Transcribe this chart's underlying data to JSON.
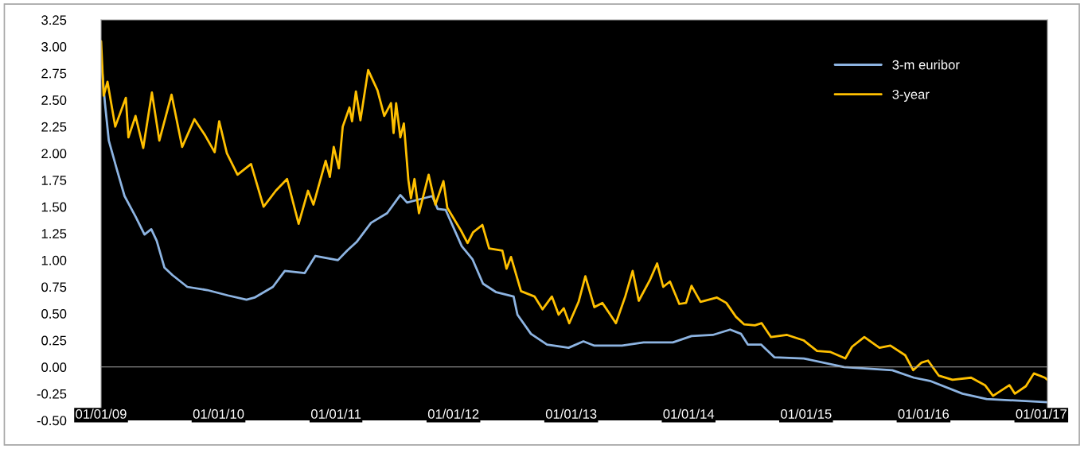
{
  "chart_data": {
    "type": "line",
    "xlim": [
      "2009-01-01",
      "2017-01-20"
    ],
    "xticks": [
      {
        "value": "2009-01-01",
        "label": "01/01/09"
      },
      {
        "value": "2010-01-01",
        "label": "01/01/10"
      },
      {
        "value": "2011-01-01",
        "label": "01/01/11"
      },
      {
        "value": "2012-01-01",
        "label": "01/01/12"
      },
      {
        "value": "2013-01-01",
        "label": "01/01/13"
      },
      {
        "value": "2014-01-01",
        "label": "01/01/14"
      },
      {
        "value": "2015-01-01",
        "label": "01/01/15"
      },
      {
        "value": "2016-01-01",
        "label": "01/01/16"
      },
      {
        "value": "2017-01-01",
        "label": "01/01/17"
      }
    ],
    "ylim": [
      -0.5,
      3.25
    ],
    "yticks": [
      {
        "value": -0.5,
        "label": "-0.50"
      },
      {
        "value": -0.25,
        "label": "-0.25"
      },
      {
        "value": 0,
        "label": "0.00"
      },
      {
        "value": 0.25,
        "label": "0.25"
      },
      {
        "value": 0.5,
        "label": "0.50"
      },
      {
        "value": 0.75,
        "label": "0.75"
      },
      {
        "value": 1.0,
        "label": "1.00"
      },
      {
        "value": 1.25,
        "label": "1.25"
      },
      {
        "value": 1.5,
        "label": "1.50"
      },
      {
        "value": 1.75,
        "label": "1.75"
      },
      {
        "value": 2.0,
        "label": "2.00"
      },
      {
        "value": 2.25,
        "label": "2.25"
      },
      {
        "value": 2.5,
        "label": "2.50"
      },
      {
        "value": 2.75,
        "label": "2.75"
      },
      {
        "value": 3.0,
        "label": "3.00"
      },
      {
        "value": 3.25,
        "label": "3.25"
      }
    ],
    "legend": "top right",
    "marker": "none",
    "line_style": "solid",
    "series": [
      {
        "name": "3-m euribor",
        "color": "#8db4e2",
        "x": [
          "2009-01-01",
          "2009-01-13",
          "2009-01-25",
          "2009-02-19",
          "2009-03-15",
          "2009-04-18",
          "2009-05-16",
          "2009-06-06",
          "2009-06-23",
          "2009-07-17",
          "2009-08-11",
          "2009-09-26",
          "2009-11-27",
          "2010-01-30",
          "2010-03-29",
          "2010-04-23",
          "2010-06-19",
          "2010-07-26",
          "2010-09-26",
          "2010-10-29",
          "2011-01-07",
          "2011-02-05",
          "2011-03-06",
          "2011-04-20",
          "2011-06-09",
          "2011-07-20",
          "2011-08-10",
          "2011-10-27",
          "2011-11-13",
          "2011-12-08",
          "2012-01-27",
          "2012-02-29",
          "2012-04-02",
          "2012-05-13",
          "2012-07-06",
          "2012-07-18",
          "2012-08-29",
          "2012-10-18",
          "2012-12-24",
          "2013-02-08",
          "2013-03-14",
          "2013-06-08",
          "2013-08-14",
          "2013-11-13",
          "2014-01-10",
          "2014-03-17",
          "2014-05-10",
          "2014-06-13",
          "2014-07-04",
          "2014-08-14",
          "2014-09-25",
          "2014-12-25",
          "2015-04-29",
          "2015-09-26",
          "2015-12-02",
          "2016-01-21",
          "2016-05-01",
          "2016-07-15",
          "2017-01-20"
        ],
        "values": [
          2.89,
          2.47,
          2.12,
          1.85,
          1.6,
          1.41,
          1.24,
          1.29,
          1.18,
          0.93,
          0.86,
          0.75,
          0.72,
          0.67,
          0.63,
          0.65,
          0.75,
          0.9,
          0.88,
          1.04,
          1.0,
          1.09,
          1.17,
          1.35,
          1.44,
          1.61,
          1.54,
          1.6,
          1.48,
          1.47,
          1.13,
          1.01,
          0.78,
          0.7,
          0.66,
          0.49,
          0.31,
          0.21,
          0.18,
          0.24,
          0.2,
          0.2,
          0.23,
          0.23,
          0.29,
          0.3,
          0.35,
          0.31,
          0.21,
          0.21,
          0.09,
          0.08,
          0.0,
          -0.03,
          -0.1,
          -0.13,
          -0.25,
          -0.3,
          -0.33
        ]
      },
      {
        "name": "3-year",
        "color": "#ffc000",
        "x": [
          "2009-01-01",
          "2009-01-09",
          "2009-01-21",
          "2009-02-14",
          "2009-03-19",
          "2009-03-27",
          "2009-04-18",
          "2009-05-12",
          "2009-06-08",
          "2009-07-01",
          "2009-08-08",
          "2009-09-10",
          "2009-10-18",
          "2009-11-20",
          "2009-12-20",
          "2010-01-03",
          "2010-01-27",
          "2010-03-01",
          "2010-04-12",
          "2010-05-21",
          "2010-06-28",
          "2010-08-02",
          "2010-09-07",
          "2010-10-06",
          "2010-10-23",
          "2010-11-30",
          "2010-12-13",
          "2010-12-25",
          "2011-01-10",
          "2011-01-22",
          "2011-02-12",
          "2011-02-20",
          "2011-03-04",
          "2011-03-18",
          "2011-04-11",
          "2011-05-10",
          "2011-05-31",
          "2011-06-21",
          "2011-06-29",
          "2011-07-07",
          "2011-07-20",
          "2011-07-31",
          "2011-08-14",
          "2011-08-22",
          "2011-09-02",
          "2011-09-16",
          "2011-10-16",
          "2011-11-06",
          "2011-12-01",
          "2011-12-13",
          "2012-01-24",
          "2012-02-14",
          "2012-03-02",
          "2012-03-31",
          "2012-04-21",
          "2012-06-01",
          "2012-06-14",
          "2012-06-28",
          "2012-07-29",
          "2012-09-09",
          "2012-10-04",
          "2012-11-02",
          "2012-11-23",
          "2012-12-09",
          "2012-12-26",
          "2013-01-24",
          "2013-02-14",
          "2013-03-14",
          "2013-04-08",
          "2013-05-20",
          "2013-06-18",
          "2013-07-11",
          "2013-07-30",
          "2013-09-02",
          "2013-09-25",
          "2013-10-14",
          "2013-11-04",
          "2013-12-03",
          "2013-12-24",
          "2014-01-10",
          "2014-02-07",
          "2014-03-30",
          "2014-04-28",
          "2014-05-28",
          "2014-06-22",
          "2014-07-26",
          "2014-08-16",
          "2014-09-14",
          "2014-11-03",
          "2014-12-24",
          "2015-02-04",
          "2015-03-18",
          "2015-05-03",
          "2015-05-24",
          "2015-07-01",
          "2015-08-17",
          "2015-09-20",
          "2015-11-05",
          "2015-11-30",
          "2015-12-25",
          "2016-01-15",
          "2016-02-17",
          "2016-03-31",
          "2016-05-28",
          "2016-07-10",
          "2016-08-04",
          "2016-09-24",
          "2016-10-11",
          "2016-11-14",
          "2016-12-09",
          "2017-01-12",
          "2017-01-20"
        ],
        "values": [
          3.05,
          2.54,
          2.67,
          2.25,
          2.52,
          2.15,
          2.35,
          2.05,
          2.57,
          2.12,
          2.55,
          2.06,
          2.32,
          2.17,
          2.01,
          2.3,
          2.0,
          1.8,
          1.9,
          1.5,
          1.65,
          1.76,
          1.34,
          1.65,
          1.52,
          1.93,
          1.78,
          2.06,
          1.86,
          2.25,
          2.43,
          2.3,
          2.58,
          2.31,
          2.78,
          2.59,
          2.35,
          2.47,
          2.19,
          2.47,
          2.15,
          2.28,
          1.75,
          1.58,
          1.76,
          1.44,
          1.8,
          1.52,
          1.74,
          1.49,
          1.28,
          1.16,
          1.26,
          1.33,
          1.11,
          1.09,
          0.92,
          1.03,
          0.71,
          0.66,
          0.54,
          0.66,
          0.49,
          0.55,
          0.41,
          0.61,
          0.85,
          0.56,
          0.6,
          0.41,
          0.66,
          0.9,
          0.62,
          0.81,
          0.97,
          0.75,
          0.8,
          0.59,
          0.6,
          0.76,
          0.61,
          0.65,
          0.6,
          0.47,
          0.4,
          0.39,
          0.41,
          0.28,
          0.3,
          0.25,
          0.15,
          0.14,
          0.08,
          0.19,
          0.28,
          0.18,
          0.2,
          0.11,
          -0.03,
          0.04,
          0.06,
          -0.08,
          -0.12,
          -0.1,
          -0.17,
          -0.27,
          -0.17,
          -0.25,
          -0.18,
          -0.06,
          -0.1,
          -0.12
        ]
      }
    ]
  }
}
